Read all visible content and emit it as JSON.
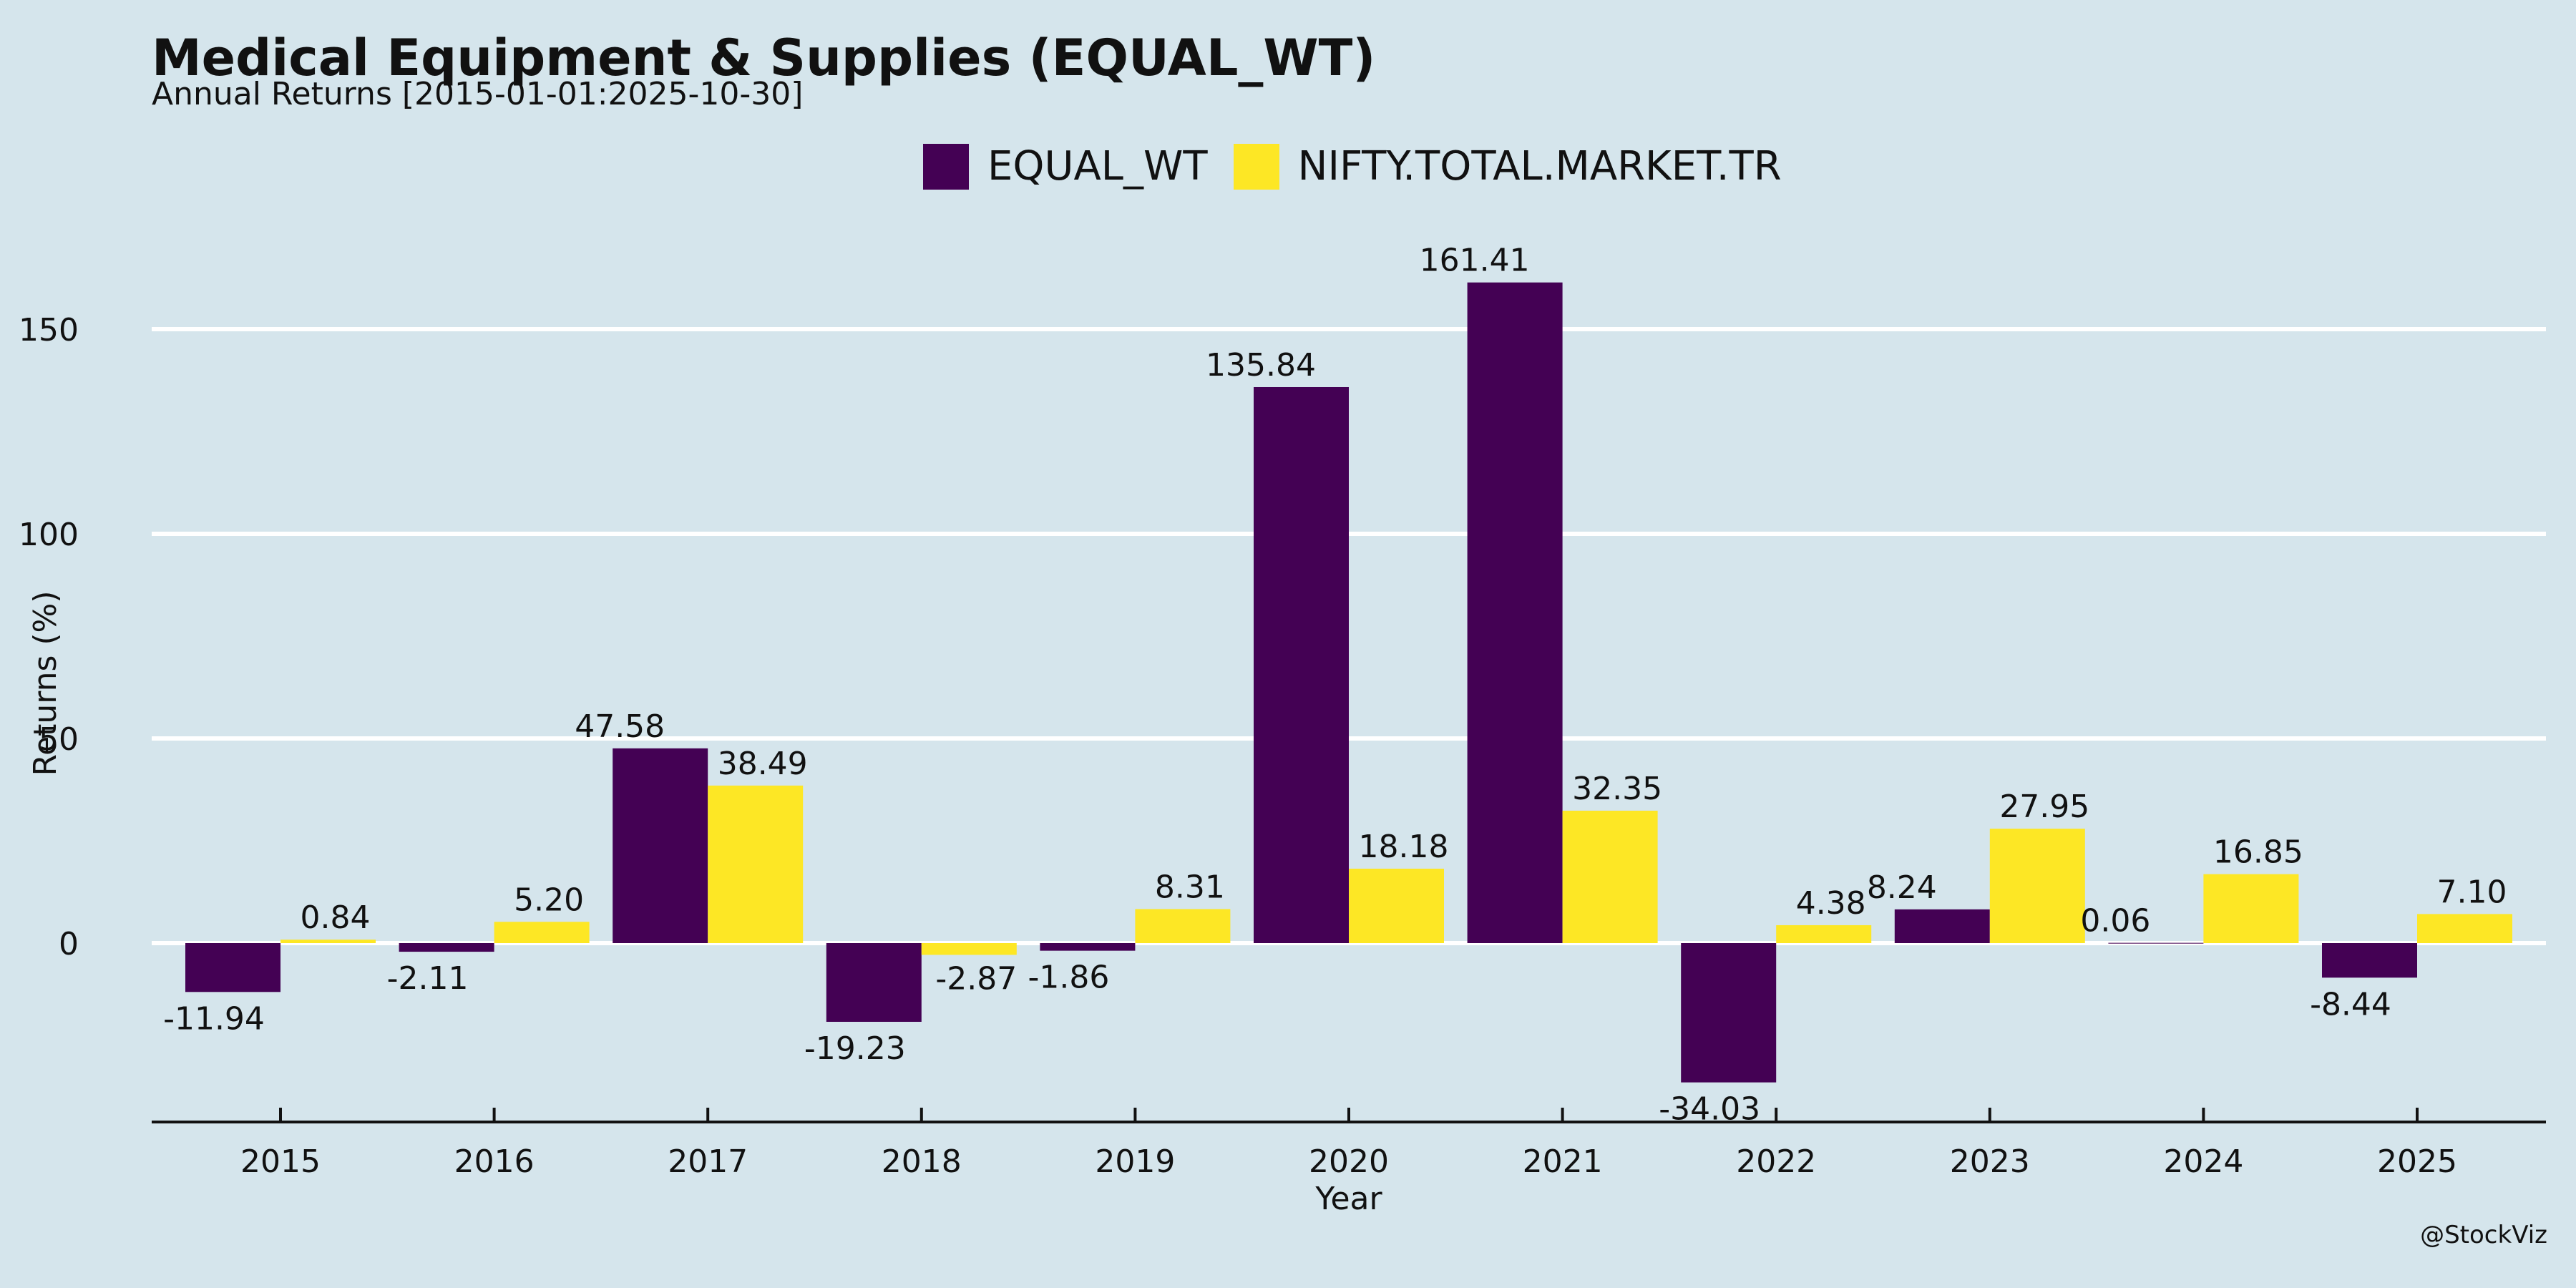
{
  "title": "Medical Equipment & Supplies (EQUAL_WT)",
  "subtitle": "Annual Returns [2015-01-01:2025-10-30]",
  "watermark": "@StockViz",
  "legend": [
    {
      "label": "EQUAL_WT",
      "color": "#440154"
    },
    {
      "label": "NIFTY.TOTAL.MARKET.TR",
      "color": "#fde725"
    }
  ],
  "chart_data": {
    "type": "bar",
    "xlabel": "Year",
    "ylabel": "Returns (%)",
    "ylim": [
      -44,
      170
    ],
    "yticks": [
      0,
      50,
      100,
      150
    ],
    "grid": true,
    "legend_position": "top-center",
    "categories": [
      "2015",
      "2016",
      "2017",
      "2018",
      "2019",
      "2020",
      "2021",
      "2022",
      "2023",
      "2024",
      "2025"
    ],
    "series": [
      {
        "name": "EQUAL_WT",
        "color": "#440154",
        "values": [
          -11.94,
          -2.11,
          47.58,
          -19.23,
          -1.86,
          135.84,
          161.41,
          -34.03,
          8.24,
          0.06,
          -8.44
        ],
        "labels": [
          "-11.94",
          "-2.11",
          "47.58",
          "-19.23",
          "-1.86",
          "135.84",
          "161.41",
          "-34.03",
          "8.24",
          "0.06",
          "-8.44"
        ]
      },
      {
        "name": "NIFTY.TOTAL.MARKET.TR",
        "color": "#fde725",
        "values": [
          0.84,
          5.2,
          38.49,
          -2.87,
          8.31,
          18.18,
          32.35,
          4.38,
          27.95,
          16.85,
          7.1
        ],
        "labels": [
          "0.84",
          "5.20",
          "38.49",
          "-2.87",
          "8.31",
          "18.18",
          "32.35",
          "4.38",
          "27.95",
          "16.85",
          "7.10"
        ]
      }
    ]
  }
}
